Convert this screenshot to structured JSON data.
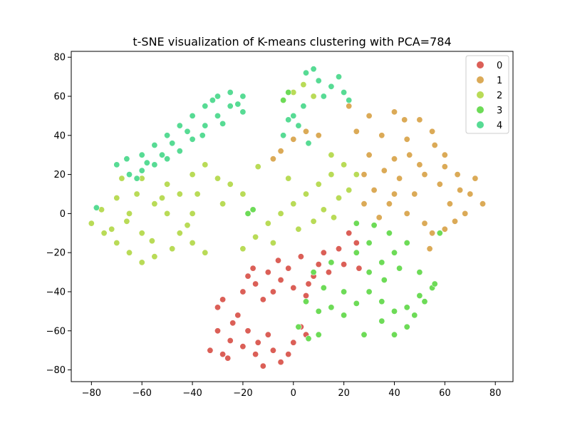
{
  "chart_data": {
    "type": "scatter",
    "title": "t-SNE visualization of K-means clustering with PCA=784",
    "xlabel": "",
    "ylabel": "",
    "xlim": [
      -88,
      87
    ],
    "ylim": [
      -86,
      83
    ],
    "x_ticks": [
      -80,
      -60,
      -40,
      -20,
      0,
      20,
      40,
      60,
      80
    ],
    "y_ticks": [
      -80,
      -60,
      -40,
      -20,
      0,
      20,
      40,
      60,
      80
    ],
    "x_tick_labels": [
      "−80",
      "−60",
      "−40",
      "−20",
      "0",
      "20",
      "40",
      "60",
      "80"
    ],
    "y_tick_labels": [
      "−80",
      "−60",
      "−40",
      "−20",
      "0",
      "20",
      "40",
      "60",
      "80"
    ],
    "grid": false,
    "legend_position": "top-right",
    "series": [
      {
        "name": "0",
        "color": "#db5f57",
        "points": [
          [
            -30,
            -60
          ],
          [
            -25,
            -65
          ],
          [
            -20,
            -68
          ],
          [
            -28,
            -72
          ],
          [
            -15,
            -72
          ],
          [
            -12,
            -78
          ],
          [
            -5,
            -76
          ],
          [
            -22,
            -52
          ],
          [
            -30,
            -48
          ],
          [
            -18,
            -60
          ],
          [
            -10,
            -62
          ],
          [
            -8,
            -70
          ],
          [
            0,
            -66
          ],
          [
            5,
            -62
          ],
          [
            -26,
            -74
          ],
          [
            -33,
            -70
          ],
          [
            -24,
            -56
          ],
          [
            -14,
            -66
          ],
          [
            -2,
            -72
          ],
          [
            3,
            -58
          ],
          [
            -28,
            -44
          ],
          [
            -20,
            -40
          ],
          [
            -15,
            -36
          ],
          [
            -10,
            -30
          ],
          [
            -5,
            -34
          ],
          [
            0,
            -38
          ],
          [
            5,
            -42
          ],
          [
            8,
            -32
          ],
          [
            10,
            -26
          ],
          [
            -12,
            -44
          ],
          [
            -18,
            -32
          ],
          [
            -2,
            -28
          ],
          [
            3,
            -22
          ],
          [
            -8,
            -40
          ],
          [
            6,
            -36
          ],
          [
            12,
            -20
          ],
          [
            18,
            -18
          ],
          [
            25,
            -15
          ],
          [
            20,
            -26
          ],
          [
            26,
            -28
          ],
          [
            14,
            -30
          ],
          [
            -16,
            -28
          ],
          [
            -6,
            -24
          ],
          [
            22,
            -10
          ]
        ]
      },
      {
        "name": "1",
        "color": "#dbaa57",
        "points": [
          [
            30,
            50
          ],
          [
            40,
            52
          ],
          [
            50,
            48
          ],
          [
            35,
            40
          ],
          [
            45,
            38
          ],
          [
            55,
            42
          ],
          [
            60,
            30
          ],
          [
            65,
            20
          ],
          [
            70,
            10
          ],
          [
            75,
            5
          ],
          [
            68,
            0
          ],
          [
            60,
            -8
          ],
          [
            52,
            -5
          ],
          [
            45,
            0
          ],
          [
            38,
            5
          ],
          [
            32,
            12
          ],
          [
            28,
            20
          ],
          [
            30,
            30
          ],
          [
            40,
            28
          ],
          [
            50,
            25
          ],
          [
            58,
            15
          ],
          [
            62,
            5
          ],
          [
            55,
            -10
          ],
          [
            48,
            10
          ],
          [
            42,
            18
          ],
          [
            36,
            22
          ],
          [
            25,
            42
          ],
          [
            22,
            55
          ],
          [
            46,
            30
          ],
          [
            66,
            12
          ],
          [
            72,
            18
          ],
          [
            64,
            -4
          ],
          [
            56,
            35
          ],
          [
            34,
            -2
          ],
          [
            28,
            5
          ],
          [
            44,
            48
          ],
          [
            52,
            20
          ],
          [
            60,
            24
          ],
          [
            40,
            10
          ],
          [
            -5,
            32
          ],
          [
            0,
            38
          ],
          [
            5,
            42
          ],
          [
            10,
            40
          ],
          [
            -8,
            28
          ],
          [
            54,
            -18
          ]
        ]
      },
      {
        "name": "2",
        "color": "#b9db57",
        "points": [
          [
            -80,
            -5
          ],
          [
            -75,
            -10
          ],
          [
            -70,
            -15
          ],
          [
            -65,
            -20
          ],
          [
            -60,
            -25
          ],
          [
            -55,
            -22
          ],
          [
            -60,
            -10
          ],
          [
            -65,
            0
          ],
          [
            -70,
            8
          ],
          [
            -72,
            -8
          ],
          [
            -62,
            10
          ],
          [
            -55,
            5
          ],
          [
            -50,
            0
          ],
          [
            -45,
            -10
          ],
          [
            -40,
            -15
          ],
          [
            -35,
            -20
          ],
          [
            -40,
            0
          ],
          [
            -45,
            10
          ],
          [
            -50,
            15
          ],
          [
            -40,
            20
          ],
          [
            -30,
            18
          ],
          [
            -25,
            15
          ],
          [
            -20,
            10
          ],
          [
            -35,
            25
          ],
          [
            -56,
            -14
          ],
          [
            -48,
            -18
          ],
          [
            -42,
            -6
          ],
          [
            -68,
            18
          ],
          [
            -60,
            18
          ],
          [
            -76,
            2
          ],
          [
            -66,
            -4
          ],
          [
            -52,
            8
          ],
          [
            -38,
            10
          ],
          [
            -28,
            5
          ],
          [
            -15,
            -12
          ],
          [
            -10,
            -5
          ],
          [
            -5,
            0
          ],
          [
            0,
            5
          ],
          [
            5,
            10
          ],
          [
            10,
            15
          ],
          [
            15,
            20
          ],
          [
            20,
            25
          ],
          [
            -8,
            -15
          ],
          [
            2,
            -8
          ],
          [
            12,
            2
          ],
          [
            18,
            8
          ],
          [
            22,
            12
          ],
          [
            8,
            -4
          ],
          [
            -2,
            18
          ],
          [
            25,
            20
          ],
          [
            15,
            30
          ],
          [
            8,
            60
          ],
          [
            4,
            66
          ],
          [
            0,
            62
          ],
          [
            16,
            -2
          ],
          [
            -14,
            24
          ],
          [
            -20,
            -18
          ]
        ]
      },
      {
        "name": "3",
        "color": "#6ddb57",
        "points": [
          [
            5,
            -45
          ],
          [
            10,
            -50
          ],
          [
            15,
            -48
          ],
          [
            20,
            -52
          ],
          [
            25,
            -46
          ],
          [
            30,
            -40
          ],
          [
            35,
            -45
          ],
          [
            40,
            -50
          ],
          [
            45,
            -48
          ],
          [
            50,
            -42
          ],
          [
            55,
            -38
          ],
          [
            45,
            -58
          ],
          [
            35,
            -55
          ],
          [
            40,
            -62
          ],
          [
            48,
            -52
          ],
          [
            30,
            -30
          ],
          [
            35,
            -25
          ],
          [
            40,
            -20
          ],
          [
            45,
            -15
          ],
          [
            38,
            -10
          ],
          [
            30,
            -15
          ],
          [
            25,
            -20
          ],
          [
            50,
            -30
          ],
          [
            20,
            -40
          ],
          [
            12,
            -38
          ],
          [
            8,
            -30
          ],
          [
            15,
            -25
          ],
          [
            25,
            -5
          ],
          [
            32,
            -6
          ],
          [
            42,
            -28
          ],
          [
            52,
            -45
          ],
          [
            56,
            -36
          ],
          [
            36,
            -34
          ],
          [
            2,
            -58
          ],
          [
            10,
            -62
          ],
          [
            6,
            -64
          ],
          [
            -18,
            0
          ],
          [
            -16,
            2
          ],
          [
            -4,
            58
          ],
          [
            -2,
            62
          ],
          [
            58,
            -10
          ],
          [
            28,
            -62
          ]
        ]
      },
      {
        "name": "4",
        "color": "#57db94",
        "points": [
          [
            -70,
            25
          ],
          [
            -65,
            20
          ],
          [
            -60,
            30
          ],
          [
            -55,
            35
          ],
          [
            -50,
            40
          ],
          [
            -45,
            45
          ],
          [
            -40,
            50
          ],
          [
            -35,
            55
          ],
          [
            -30,
            60
          ],
          [
            -25,
            62
          ],
          [
            -20,
            60
          ],
          [
            -35,
            45
          ],
          [
            -40,
            38
          ],
          [
            -45,
            32
          ],
          [
            -50,
            28
          ],
          [
            -55,
            25
          ],
          [
            -60,
            22
          ],
          [
            -30,
            50
          ],
          [
            -25,
            55
          ],
          [
            -20,
            52
          ],
          [
            -42,
            42
          ],
          [
            -52,
            30
          ],
          [
            -62,
            18
          ],
          [
            -36,
            40
          ],
          [
            -28,
            46
          ],
          [
            -48,
            36
          ],
          [
            -58,
            26
          ],
          [
            -66,
            28
          ],
          [
            -22,
            56
          ],
          [
            -32,
            58
          ],
          [
            -78,
            3
          ],
          [
            5,
            72
          ],
          [
            10,
            68
          ],
          [
            15,
            65
          ],
          [
            12,
            60
          ],
          [
            20,
            62
          ],
          [
            8,
            74
          ],
          [
            18,
            70
          ],
          [
            22,
            58
          ],
          [
            0,
            50
          ],
          [
            -2,
            48
          ],
          [
            2,
            45
          ],
          [
            4,
            55
          ],
          [
            6,
            36
          ],
          [
            -4,
            40
          ]
        ]
      }
    ]
  }
}
